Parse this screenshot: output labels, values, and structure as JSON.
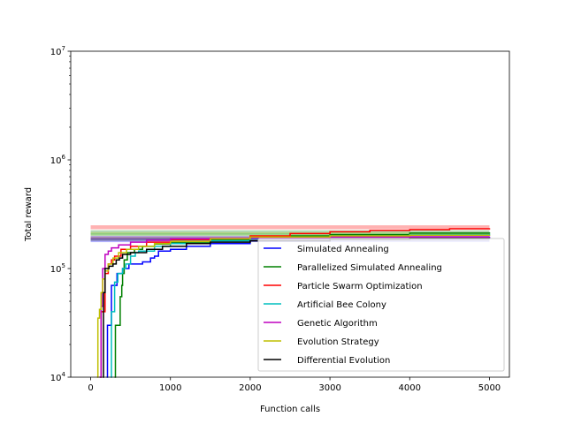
{
  "chart_data": {
    "type": "line",
    "title": "",
    "xlabel": "Function calls",
    "ylabel": "Total reward",
    "xlim": [
      -250,
      5250
    ],
    "ylim": [
      10000,
      10000000
    ],
    "yscale": "log",
    "x_ticks": [
      0,
      1000,
      2000,
      3000,
      4000,
      5000
    ],
    "x_tick_labels": [
      "0",
      "1000",
      "2000",
      "3000",
      "4000",
      "5000"
    ],
    "y_ticks": [
      10000,
      100000,
      1000000,
      10000000
    ],
    "y_tick_labels": [
      {
        "base": "10",
        "exp": "4"
      },
      {
        "base": "10",
        "exp": "5"
      },
      {
        "base": "10",
        "exp": "6"
      },
      {
        "base": "10",
        "exp": "7"
      }
    ],
    "grid": false,
    "legend_position": "lower right",
    "bands": [
      {
        "color": "#ff0000",
        "lower": 230000,
        "upper": 250000
      },
      {
        "color": "#008000",
        "lower": 205000,
        "upper": 225000
      },
      {
        "color": "#00bfbf",
        "lower": 195000,
        "upper": 212000
      },
      {
        "color": "#bfbf00",
        "lower": 200000,
        "upper": 215000
      },
      {
        "color": "#bf00bf",
        "lower": 185000,
        "upper": 200000
      },
      {
        "color": "#0000ff",
        "lower": 175000,
        "upper": 190000
      },
      {
        "color": "#000000",
        "lower": 180000,
        "upper": 195000
      }
    ],
    "series": [
      {
        "name": "Simulated Annealing",
        "color": "#0000ff",
        "points": [
          [
            200,
            1000
          ],
          [
            210,
            30000
          ],
          [
            240,
            30000
          ],
          [
            260,
            70000
          ],
          [
            300,
            70000
          ],
          [
            330,
            90000
          ],
          [
            380,
            90000
          ],
          [
            400,
            100000
          ],
          [
            450,
            100000
          ],
          [
            480,
            110000
          ],
          [
            600,
            110000
          ],
          [
            650,
            115000
          ],
          [
            720,
            115000
          ],
          [
            750,
            125000
          ],
          [
            800,
            130000
          ],
          [
            850,
            145000
          ],
          [
            1000,
            150000
          ],
          [
            1200,
            160000
          ],
          [
            1500,
            170000
          ],
          [
            2000,
            180000
          ],
          [
            3000,
            186000
          ],
          [
            4000,
            190000
          ],
          [
            5000,
            195000
          ]
        ]
      },
      {
        "name": "Parallelized Simulated Annealing",
        "color": "#008000",
        "points": [
          [
            300,
            1000
          ],
          [
            310,
            30000
          ],
          [
            360,
            30000
          ],
          [
            370,
            55000
          ],
          [
            390,
            70000
          ],
          [
            400,
            90000
          ],
          [
            420,
            120000
          ],
          [
            460,
            140000
          ],
          [
            550,
            150000
          ],
          [
            650,
            160000
          ],
          [
            800,
            168000
          ],
          [
            1000,
            175000
          ],
          [
            1500,
            185000
          ],
          [
            2000,
            195000
          ],
          [
            2500,
            200000
          ],
          [
            3000,
            205000
          ],
          [
            4000,
            212000
          ],
          [
            5000,
            215000
          ]
        ]
      },
      {
        "name": "Particle Swarm Optimization",
        "color": "#ff0000",
        "points": [
          [
            120,
            1000
          ],
          [
            130,
            40000
          ],
          [
            180,
            90000
          ],
          [
            220,
            110000
          ],
          [
            260,
            120000
          ],
          [
            300,
            130000
          ],
          [
            380,
            150000
          ],
          [
            500,
            160000
          ],
          [
            700,
            175000
          ],
          [
            1000,
            185000
          ],
          [
            1500,
            190000
          ],
          [
            2000,
            200000
          ],
          [
            2500,
            210000
          ],
          [
            3000,
            218000
          ],
          [
            3500,
            224000
          ],
          [
            4000,
            228000
          ],
          [
            4500,
            232000
          ],
          [
            5000,
            235000
          ]
        ]
      },
      {
        "name": "Artificial Bee Colony",
        "color": "#00bfbf",
        "points": [
          [
            250,
            1000
          ],
          [
            260,
            40000
          ],
          [
            290,
            40000
          ],
          [
            300,
            75000
          ],
          [
            340,
            90000
          ],
          [
            400,
            100000
          ],
          [
            440,
            110000
          ],
          [
            500,
            130000
          ],
          [
            560,
            140000
          ],
          [
            600,
            145000
          ],
          [
            800,
            160000
          ],
          [
            1000,
            170000
          ],
          [
            1500,
            180000
          ],
          [
            2000,
            190000
          ],
          [
            3000,
            200000
          ],
          [
            4000,
            205000
          ],
          [
            5000,
            208000
          ]
        ]
      },
      {
        "name": "Genetic Algorithm",
        "color": "#bf00bf",
        "points": [
          [
            110,
            1000
          ],
          [
            130,
            45000
          ],
          [
            150,
            100000
          ],
          [
            180,
            135000
          ],
          [
            220,
            145000
          ],
          [
            260,
            155000
          ],
          [
            350,
            165000
          ],
          [
            500,
            175000
          ],
          [
            700,
            182000
          ],
          [
            1000,
            188000
          ],
          [
            1500,
            190000
          ],
          [
            2000,
            192000
          ],
          [
            3000,
            195000
          ],
          [
            4000,
            196000
          ],
          [
            5000,
            197000
          ]
        ]
      },
      {
        "name": "Evolution Strategy",
        "color": "#bfbf00",
        "points": [
          [
            80,
            1000
          ],
          [
            90,
            35000
          ],
          [
            110,
            42000
          ],
          [
            130,
            60000
          ],
          [
            150,
            80000
          ],
          [
            180,
            95000
          ],
          [
            220,
            110000
          ],
          [
            280,
            125000
          ],
          [
            350,
            140000
          ],
          [
            450,
            150000
          ],
          [
            600,
            160000
          ],
          [
            800,
            170000
          ],
          [
            1000,
            178000
          ],
          [
            1500,
            188000
          ],
          [
            2000,
            195000
          ],
          [
            3000,
            200000
          ],
          [
            4000,
            203000
          ],
          [
            5000,
            205000
          ]
        ]
      },
      {
        "name": "Differential Evolution",
        "color": "#000000",
        "points": [
          [
            150,
            1000
          ],
          [
            160,
            60000
          ],
          [
            180,
            100000
          ],
          [
            230,
            105000
          ],
          [
            280,
            110000
          ],
          [
            320,
            120000
          ],
          [
            360,
            125000
          ],
          [
            400,
            135000
          ],
          [
            500,
            140000
          ],
          [
            700,
            150000
          ],
          [
            900,
            160000
          ],
          [
            1200,
            170000
          ],
          [
            1500,
            175000
          ],
          [
            2000,
            180000
          ],
          [
            3000,
            186000
          ],
          [
            4000,
            190000
          ],
          [
            5000,
            192000
          ]
        ]
      }
    ]
  }
}
